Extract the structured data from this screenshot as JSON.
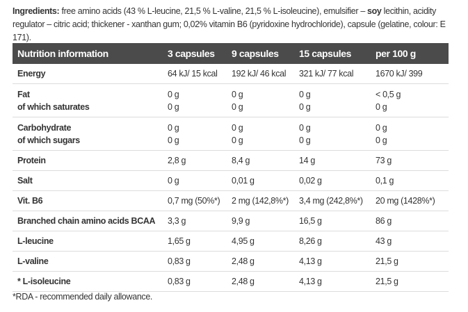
{
  "ingredients": {
    "label": "Ingredients:",
    "text_1": " free amino acids (43 % L-leucine, 21,5 % L-valine, 21,5 % L-isoleucine), emulsifier – ",
    "allergen": "soy",
    "text_2": " lecithin, acidity regulator – citric acid; thickener - xanthan gum;  0,02% vitamin B6 (pyridoxine hydrochloride), capsule (gelatine, colour: E 171)."
  },
  "table": {
    "headers": [
      "Nutrition information",
      "3 capsules",
      "9 capsules",
      "15 capsules",
      "per 100 g"
    ],
    "rows": [
      {
        "label": [
          "Energy"
        ],
        "values": [
          [
            "64 kJ/ 15 kcal"
          ],
          [
            "192 kJ/ 46 kcal"
          ],
          [
            "321 kJ/ 77 kcal"
          ],
          [
            "1670 kJ/ 399"
          ]
        ]
      },
      {
        "label": [
          "Fat",
          "of which saturates"
        ],
        "values": [
          [
            "0 g",
            "0 g"
          ],
          [
            "0 g",
            "0 g"
          ],
          [
            "0 g",
            "0 g"
          ],
          [
            "< 0,5 g",
            "0 g"
          ]
        ]
      },
      {
        "label": [
          "Carbohydrate",
          "of which sugars"
        ],
        "values": [
          [
            "0 g",
            "0 g"
          ],
          [
            "0 g",
            "0 g"
          ],
          [
            "0 g",
            "0 g"
          ],
          [
            "0 g",
            "0 g"
          ]
        ]
      },
      {
        "label": [
          "Protein"
        ],
        "values": [
          [
            "2,8 g"
          ],
          [
            "8,4 g"
          ],
          [
            "14 g"
          ],
          [
            "73 g"
          ]
        ]
      },
      {
        "label": [
          "Salt"
        ],
        "values": [
          [
            "0 g"
          ],
          [
            "0,01 g"
          ],
          [
            "0,02 g"
          ],
          [
            "0,1 g"
          ]
        ]
      },
      {
        "label": [
          "Vit. B6"
        ],
        "values": [
          [
            "0,7 mg (50%*)"
          ],
          [
            "2 mg (142,8%*)"
          ],
          [
            "3,4 mg (242,8%*)"
          ],
          [
            "20 mg (1428%*)"
          ]
        ]
      },
      {
        "label": [
          "Branched chain amino acids BCAA"
        ],
        "values": [
          [
            "3,3 g"
          ],
          [
            "9,9 g"
          ],
          [
            "16,5 g"
          ],
          [
            "86 g"
          ]
        ]
      },
      {
        "label": [
          "L-leucine"
        ],
        "values": [
          [
            "1,65 g"
          ],
          [
            "4,95 g"
          ],
          [
            "8,26 g"
          ],
          [
            "43 g"
          ]
        ]
      },
      {
        "label": [
          "L-valine"
        ],
        "values": [
          [
            "0,83 g"
          ],
          [
            "2,48 g"
          ],
          [
            "4,13 g"
          ],
          [
            "21,5 g"
          ]
        ]
      },
      {
        "label": [
          "* L-isoleucine"
        ],
        "values": [
          [
            "0,83 g"
          ],
          [
            "2,48 g"
          ],
          [
            "4,13 g"
          ],
          [
            "21,5 g"
          ]
        ]
      }
    ]
  },
  "footnote": "*RDA - recommended daily allowance."
}
